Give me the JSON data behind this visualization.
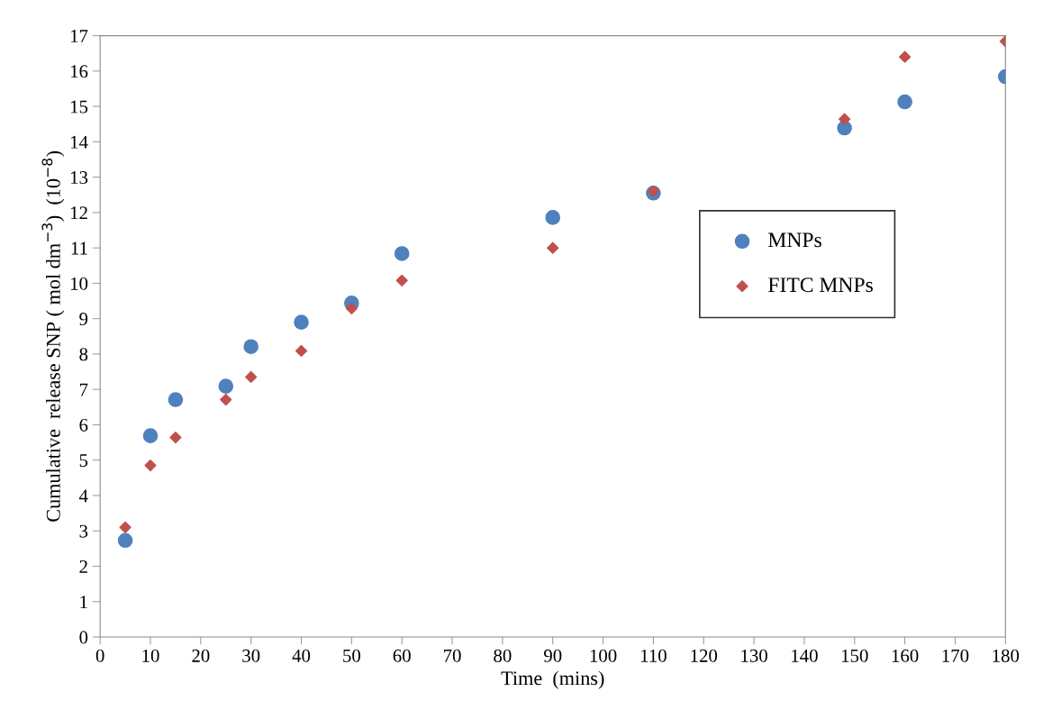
{
  "chart_data": {
    "type": "scatter",
    "xlabel": "Time  (mins)",
    "ylabel": "Cumulative  release SNP ( mol dm$^{−3}$)  (10$^{−8}$)",
    "xlim": [
      0,
      180
    ],
    "xticks": [
      0,
      10,
      20,
      30,
      40,
      50,
      60,
      70,
      80,
      90,
      100,
      110,
      120,
      130,
      140,
      150,
      160,
      170,
      180
    ],
    "ylim": [
      0,
      17
    ],
    "yticks": [
      0,
      1,
      2,
      3,
      4,
      5,
      6,
      7,
      8,
      9,
      10,
      11,
      12,
      13,
      14,
      15,
      16,
      17
    ],
    "grid": false,
    "legend": "right",
    "series": [
      {
        "name": "MNPs",
        "color": "#4f81bd",
        "marker": "circle",
        "x": [
          5,
          10,
          15,
          25,
          30,
          40,
          50,
          60,
          90,
          110,
          148,
          160,
          180
        ],
        "values": [
          2.73,
          5.69,
          6.71,
          7.09,
          8.21,
          8.9,
          9.44,
          10.84,
          11.86,
          12.55,
          14.39,
          15.13,
          15.84
        ]
      },
      {
        "name": "FITC MNPs",
        "color": "#c0504d",
        "marker": "diamond",
        "x": [
          5,
          10,
          15,
          25,
          30,
          40,
          50,
          60,
          90,
          110,
          148,
          160,
          180
        ],
        "values": [
          3.1,
          4.85,
          5.64,
          6.71,
          7.35,
          8.09,
          9.29,
          10.08,
          11.0,
          12.6,
          14.64,
          16.4,
          16.84
        ]
      }
    ]
  }
}
